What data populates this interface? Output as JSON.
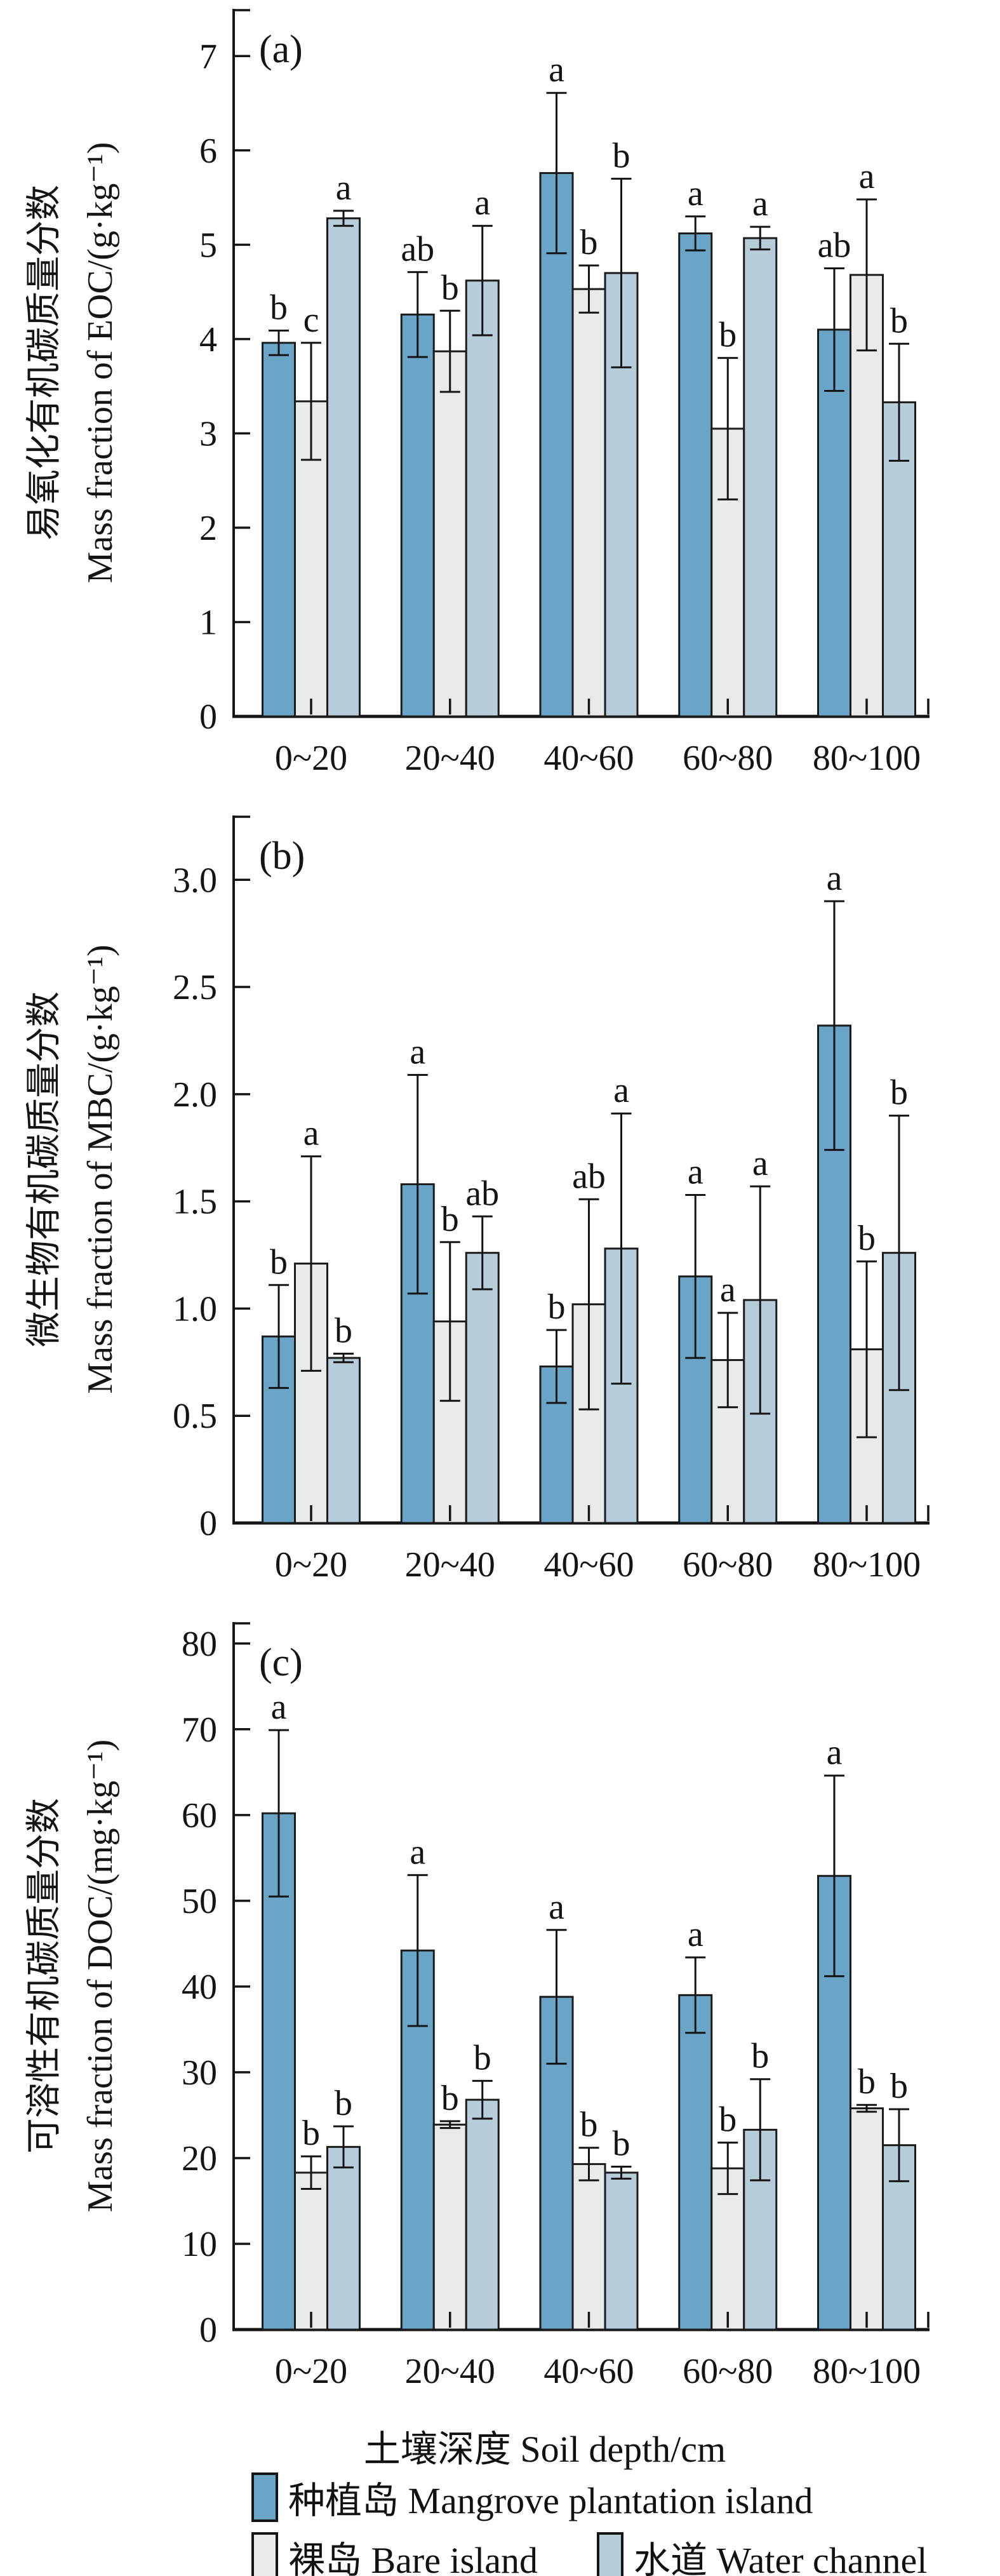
{
  "figure": {
    "x_axis_title": "土壤深度 Soil depth/cm",
    "x_categories": [
      "0~20",
      "20~40",
      "40~60",
      "60~80",
      "80~100"
    ],
    "legend": [
      {
        "label": "种植岛 Mangrove plantation island",
        "color": "#6aa5c8"
      },
      {
        "label": "裸岛 Bare island",
        "color": "#e9eaea"
      },
      {
        "label": "水道 Water channel",
        "color": "#b7ccd9"
      }
    ]
  },
  "chart_data": [
    {
      "type": "bar",
      "panel_label": "(a)",
      "ylabel_cn": "易氧化有机碳质量分数",
      "ylabel_en": "Mass fraction of EOC/(g·kg⁻¹)",
      "ylim": [
        0,
        7.5
      ],
      "ytick_values": [
        0,
        1,
        2,
        3,
        4,
        5,
        6,
        7
      ],
      "ytick_labels": [
        "0",
        "1",
        "2",
        "3",
        "4",
        "5",
        "6",
        "7"
      ],
      "grid": false,
      "categories": [
        "0~20",
        "20~40",
        "40~60",
        "60~80",
        "80~100"
      ],
      "series": [
        {
          "name": "种植岛 Mangrove plantation island",
          "color": "#6aa5c8",
          "values": [
            3.96,
            4.26,
            5.76,
            5.12,
            4.1
          ],
          "errors": [
            0.13,
            0.45,
            0.85,
            0.18,
            0.65
          ],
          "letters": [
            "b",
            "ab",
            "a",
            "a",
            "ab"
          ]
        },
        {
          "name": "裸岛 Bare island",
          "color": "#e9eaea",
          "values": [
            3.34,
            3.87,
            4.53,
            3.05,
            4.68
          ],
          "errors": [
            0.62,
            0.43,
            0.25,
            0.75,
            0.8
          ],
          "letters": [
            "c",
            "b",
            "b",
            "b",
            "a"
          ]
        },
        {
          "name": "水道 Water channel",
          "color": "#b7ccd9",
          "values": [
            5.28,
            4.62,
            4.7,
            5.07,
            3.33
          ],
          "errors": [
            0.08,
            0.58,
            1.0,
            0.12,
            0.62
          ],
          "letters": [
            "a",
            "a",
            "b",
            "a",
            "b"
          ]
        }
      ]
    },
    {
      "type": "bar",
      "panel_label": "(b)",
      "ylabel_cn": "微生物有机碳质量分数",
      "ylabel_en": "Mass fraction of MBC/(g·kg⁻¹)",
      "ylim": [
        0,
        3.3
      ],
      "ytick_values": [
        0,
        0.5,
        1.0,
        1.5,
        2.0,
        2.5,
        3.0
      ],
      "ytick_labels": [
        "0",
        "0.5",
        "1.0",
        "1.5",
        "2.0",
        "2.5",
        "3.0"
      ],
      "grid": false,
      "categories": [
        "0~20",
        "20~40",
        "40~60",
        "60~80",
        "80~100"
      ],
      "series": [
        {
          "name": "种植岛 Mangrove plantation island",
          "color": "#6aa5c8",
          "values": [
            0.87,
            1.58,
            0.73,
            1.15,
            2.32
          ],
          "errors": [
            0.24,
            0.51,
            0.17,
            0.38,
            0.58
          ],
          "letters": [
            "b",
            "a",
            "b",
            "a",
            "a"
          ]
        },
        {
          "name": "裸岛 Bare island",
          "color": "#e9eaea",
          "values": [
            1.21,
            0.94,
            1.02,
            0.76,
            0.81
          ],
          "errors": [
            0.5,
            0.37,
            0.49,
            0.22,
            0.41
          ],
          "letters": [
            "a",
            "b",
            "ab",
            "a",
            "b"
          ]
        },
        {
          "name": "水道 Water channel",
          "color": "#b7ccd9",
          "values": [
            0.77,
            1.26,
            1.28,
            1.04,
            1.26
          ],
          "errors": [
            0.02,
            0.17,
            0.63,
            0.53,
            0.64
          ],
          "letters": [
            "b",
            "ab",
            "a",
            "a",
            "b"
          ]
        }
      ]
    },
    {
      "type": "bar",
      "panel_label": "(c)",
      "ylabel_cn": "可溶性有机碳质量分数",
      "ylabel_en": "Mass fraction of DOC/(mg·kg⁻¹)",
      "ylim": [
        0,
        82.5
      ],
      "ytick_values": [
        0,
        10,
        20,
        30,
        40,
        50,
        60,
        70,
        80
      ],
      "ytick_labels": [
        "0",
        "10",
        "20",
        "30",
        "40",
        "50",
        "60",
        "70",
        "80"
      ],
      "grid": false,
      "categories": [
        "0~20",
        "20~40",
        "40~60",
        "60~80",
        "80~100"
      ],
      "series": [
        {
          "name": "种植岛 Mangrove plantation island",
          "color": "#6aa5c8",
          "values": [
            60.2,
            44.2,
            38.8,
            39.0,
            52.9
          ],
          "errors": [
            9.7,
            8.8,
            7.8,
            4.4,
            11.7
          ],
          "letters": [
            "a",
            "a",
            "a",
            "a",
            "a"
          ]
        },
        {
          "name": "裸岛 Bare island",
          "color": "#e9eaea",
          "values": [
            18.3,
            23.9,
            19.3,
            18.8,
            25.8
          ],
          "errors": [
            1.9,
            0.4,
            1.9,
            3.0,
            0.4
          ],
          "letters": [
            "b",
            "b",
            "b",
            "b",
            "b"
          ]
        },
        {
          "name": "水道 Water channel",
          "color": "#b7ccd9",
          "values": [
            21.3,
            26.8,
            18.3,
            23.3,
            21.5
          ],
          "errors": [
            2.4,
            2.2,
            0.7,
            5.9,
            4.2
          ],
          "letters": [
            "b",
            "b",
            "b",
            "b",
            "b"
          ]
        }
      ]
    }
  ]
}
